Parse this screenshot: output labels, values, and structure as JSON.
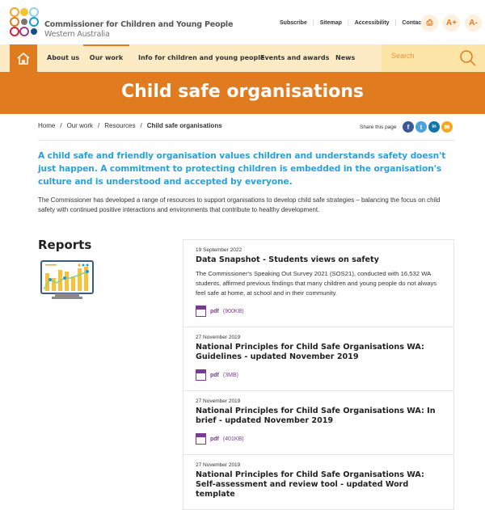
{
  "header": {
    "org_name": "Commissioner for Children and Young People",
    "org_sub": "Western Australia",
    "utility": [
      "Subscribe",
      "Sitemap",
      "Accessibility",
      "Contact"
    ],
    "font_up": "A+",
    "font_down": "A-"
  },
  "nav": {
    "items": [
      "About us",
      "Our work",
      "Info for children and young people",
      "Events and awards",
      "News"
    ],
    "active": "Our work",
    "search_placeholder": "Search"
  },
  "banner": {
    "title": "Child safe organisations"
  },
  "breadcrumb": [
    "Home",
    "Our work",
    "Resources",
    "Child safe organisations"
  ],
  "share": {
    "label": "Share this page"
  },
  "lead": "A child safe and friendly organisation values children and understands safety doesn't just happen. A commitment to protecting children is embedded in the organisation's culture and is understood and accepted by everyone.",
  "intro": "The Commissioner has developed a range of resources to support organisations to develop child safe strategies – balancing the focus on child safety with continued positive interactions and environments that contribute to healthy development.",
  "reports": {
    "heading": "Reports",
    "items": [
      {
        "date": "19 September 2022",
        "title": "Data Snapshot - Students views on safety",
        "desc": "The Commissioner's Speaking Out Survey 2021 (SOS21), conducted with 16,532 WA students, affirmed previous findings that many children and young people do not always feel safe at home, at school and in their community.",
        "link": "pdf",
        "size": "(900KB)"
      },
      {
        "date": "27 November 2019",
        "title": "National Principles for Child Safe Organisations WA: Guidelines - updated November 2019",
        "link": "pdf",
        "size": "(3MB)"
      },
      {
        "date": "27 November 2019",
        "title": "National Principles for Child Safe Organisations WA: In brief - updated November 2019",
        "link": "pdf",
        "size": "(401KB)"
      },
      {
        "date": "27 November 2019",
        "title": "National Principles for Child Safe Organisations WA: Self-assessment and review tool - updated Word template"
      }
    ]
  },
  "colors": {
    "accent": "#e07b1f",
    "nav_bg": "#fdebc6",
    "lead": "#2aa0d8",
    "link": "#7a3b8f"
  }
}
